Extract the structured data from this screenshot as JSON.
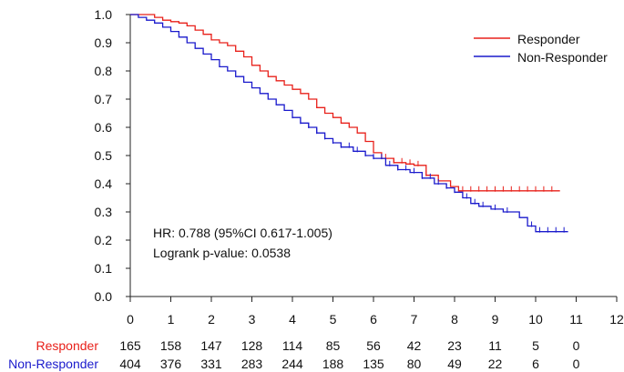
{
  "chart_data": {
    "type": "line",
    "subtype": "kaplan-meier",
    "title": "",
    "xlabel": "",
    "ylabel": "",
    "xlim": [
      0,
      12
    ],
    "ylim": [
      0,
      1.0
    ],
    "x_ticks": [
      "0",
      "1",
      "2",
      "3",
      "4",
      "5",
      "6",
      "7",
      "8",
      "9",
      "10",
      "11",
      "12"
    ],
    "y_ticks": [
      "0.0",
      "0.1",
      "0.2",
      "0.3",
      "0.4",
      "0.5",
      "0.6",
      "0.7",
      "0.8",
      "0.9",
      "1.0"
    ],
    "grid": false,
    "legend_position": "top-right",
    "annotations": [
      "HR: 0.788 (95%CI 0.617-1.005)",
      "Logrank p-value: 0.0538"
    ],
    "series": [
      {
        "name": "Responder",
        "color": "#e8201a",
        "points": [
          [
            0,
            1.0
          ],
          [
            0.3,
            1.0
          ],
          [
            0.6,
            0.99
          ],
          [
            0.8,
            0.98
          ],
          [
            1.0,
            0.975
          ],
          [
            1.2,
            0.97
          ],
          [
            1.4,
            0.96
          ],
          [
            1.6,
            0.945
          ],
          [
            1.8,
            0.93
          ],
          [
            2.0,
            0.91
          ],
          [
            2.2,
            0.9
          ],
          [
            2.4,
            0.89
          ],
          [
            2.6,
            0.87
          ],
          [
            2.8,
            0.85
          ],
          [
            3.0,
            0.82
          ],
          [
            3.2,
            0.8
          ],
          [
            3.4,
            0.78
          ],
          [
            3.6,
            0.765
          ],
          [
            3.8,
            0.75
          ],
          [
            4.0,
            0.735
          ],
          [
            4.2,
            0.72
          ],
          [
            4.4,
            0.7
          ],
          [
            4.6,
            0.67
          ],
          [
            4.8,
            0.65
          ],
          [
            5.0,
            0.635
          ],
          [
            5.2,
            0.615
          ],
          [
            5.4,
            0.6
          ],
          [
            5.6,
            0.58
          ],
          [
            5.8,
            0.55
          ],
          [
            6.0,
            0.51
          ],
          [
            6.2,
            0.49
          ],
          [
            6.5,
            0.475
          ],
          [
            6.8,
            0.47
          ],
          [
            7.0,
            0.465
          ],
          [
            7.3,
            0.43
          ],
          [
            7.6,
            0.41
          ],
          [
            7.9,
            0.39
          ],
          [
            8.1,
            0.375
          ],
          [
            8.5,
            0.375
          ],
          [
            9.0,
            0.375
          ],
          [
            9.5,
            0.375
          ],
          [
            10.0,
            0.375
          ],
          [
            10.6,
            0.375
          ]
        ],
        "censor_x": [
          6.3,
          6.5,
          6.7,
          6.9,
          7.1,
          7.3,
          8.2,
          8.4,
          8.6,
          8.8,
          9.0,
          9.2,
          9.4,
          9.6,
          9.8,
          10.0,
          10.2,
          10.4
        ],
        "at_risk": [
          165,
          158,
          147,
          128,
          114,
          85,
          56,
          42,
          23,
          11,
          5,
          0
        ]
      },
      {
        "name": "Non-Responder",
        "color": "#1a1acc",
        "points": [
          [
            0,
            1.0
          ],
          [
            0.2,
            0.99
          ],
          [
            0.4,
            0.98
          ],
          [
            0.6,
            0.97
          ],
          [
            0.8,
            0.955
          ],
          [
            1.0,
            0.94
          ],
          [
            1.2,
            0.92
          ],
          [
            1.4,
            0.9
          ],
          [
            1.6,
            0.88
          ],
          [
            1.8,
            0.86
          ],
          [
            2.0,
            0.84
          ],
          [
            2.2,
            0.815
          ],
          [
            2.4,
            0.8
          ],
          [
            2.6,
            0.78
          ],
          [
            2.8,
            0.76
          ],
          [
            3.0,
            0.74
          ],
          [
            3.2,
            0.72
          ],
          [
            3.4,
            0.7
          ],
          [
            3.6,
            0.68
          ],
          [
            3.8,
            0.66
          ],
          [
            4.0,
            0.635
          ],
          [
            4.2,
            0.615
          ],
          [
            4.4,
            0.6
          ],
          [
            4.6,
            0.58
          ],
          [
            4.8,
            0.56
          ],
          [
            5.0,
            0.545
          ],
          [
            5.2,
            0.53
          ],
          [
            5.5,
            0.515
          ],
          [
            5.8,
            0.5
          ],
          [
            6.0,
            0.49
          ],
          [
            6.3,
            0.465
          ],
          [
            6.6,
            0.45
          ],
          [
            6.9,
            0.44
          ],
          [
            7.2,
            0.42
          ],
          [
            7.5,
            0.4
          ],
          [
            7.8,
            0.385
          ],
          [
            8.0,
            0.37
          ],
          [
            8.2,
            0.35
          ],
          [
            8.4,
            0.33
          ],
          [
            8.6,
            0.32
          ],
          [
            8.9,
            0.31
          ],
          [
            9.2,
            0.3
          ],
          [
            9.6,
            0.28
          ],
          [
            9.8,
            0.25
          ],
          [
            10.0,
            0.23
          ],
          [
            10.4,
            0.23
          ],
          [
            10.8,
            0.23
          ]
        ],
        "censor_x": [
          4.0,
          4.2,
          4.4,
          4.6,
          4.8,
          5.0,
          5.2,
          5.4,
          5.6,
          5.8,
          6.0,
          6.2,
          6.4,
          6.6,
          6.8,
          7.0,
          7.2,
          7.4,
          7.6,
          7.8,
          8.0,
          8.3,
          8.5,
          8.7,
          9.0,
          9.3,
          9.9,
          10.1,
          10.3,
          10.5,
          10.7
        ],
        "at_risk": [
          404,
          376,
          331,
          283,
          244,
          188,
          135,
          80,
          49,
          22,
          6,
          0
        ]
      }
    ]
  }
}
